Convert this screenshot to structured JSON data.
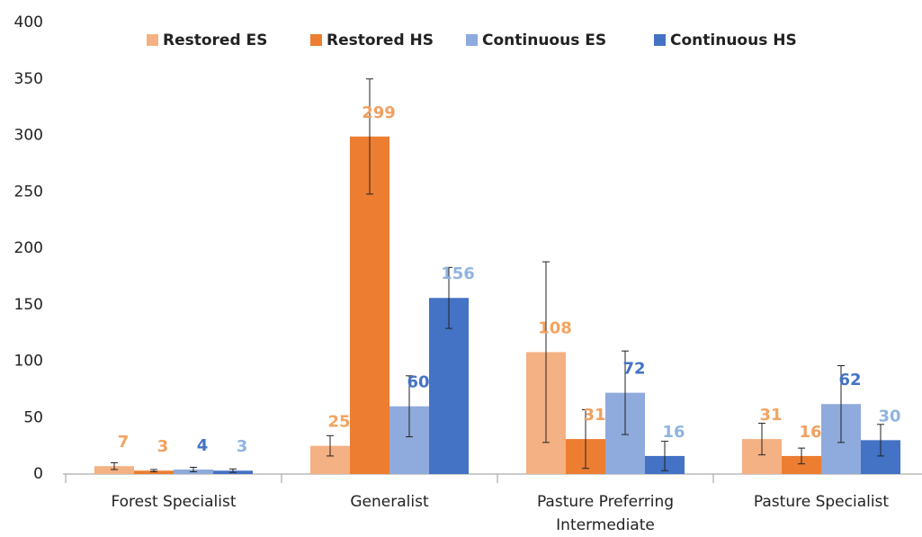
{
  "chart_data": {
    "type": "bar",
    "categories": [
      "Forest Specialist",
      "Generalist",
      "Pasture Preferring Intermediate",
      "Pasture Specialist"
    ],
    "series": [
      {
        "name": "Restored ES",
        "color": "#f4b183",
        "label_color": "#f4a460",
        "values": [
          7,
          25,
          108,
          31
        ],
        "errors": [
          3,
          9,
          80,
          14
        ]
      },
      {
        "name": "Restored HS",
        "color": "#ed7d31",
        "label_color": "#f0a060",
        "values": [
          3,
          299,
          31,
          16
        ],
        "errors": [
          1,
          51,
          26,
          7
        ]
      },
      {
        "name": "Continuous ES",
        "color": "#8faadc",
        "label_color": "#4472c4",
        "values": [
          4,
          60,
          72,
          62
        ],
        "errors": [
          2,
          27,
          37,
          34
        ]
      },
      {
        "name": "Continuous HS",
        "color": "#4472c4",
        "label_color": "#8fb4e0",
        "values": [
          3,
          156,
          16,
          30
        ],
        "errors": [
          1.5,
          27,
          13,
          14
        ]
      }
    ],
    "ylim": [
      0,
      400
    ],
    "yticks": [
      0,
      50,
      100,
      150,
      200,
      250,
      300,
      350,
      400
    ],
    "grid": false,
    "legend": "top"
  }
}
